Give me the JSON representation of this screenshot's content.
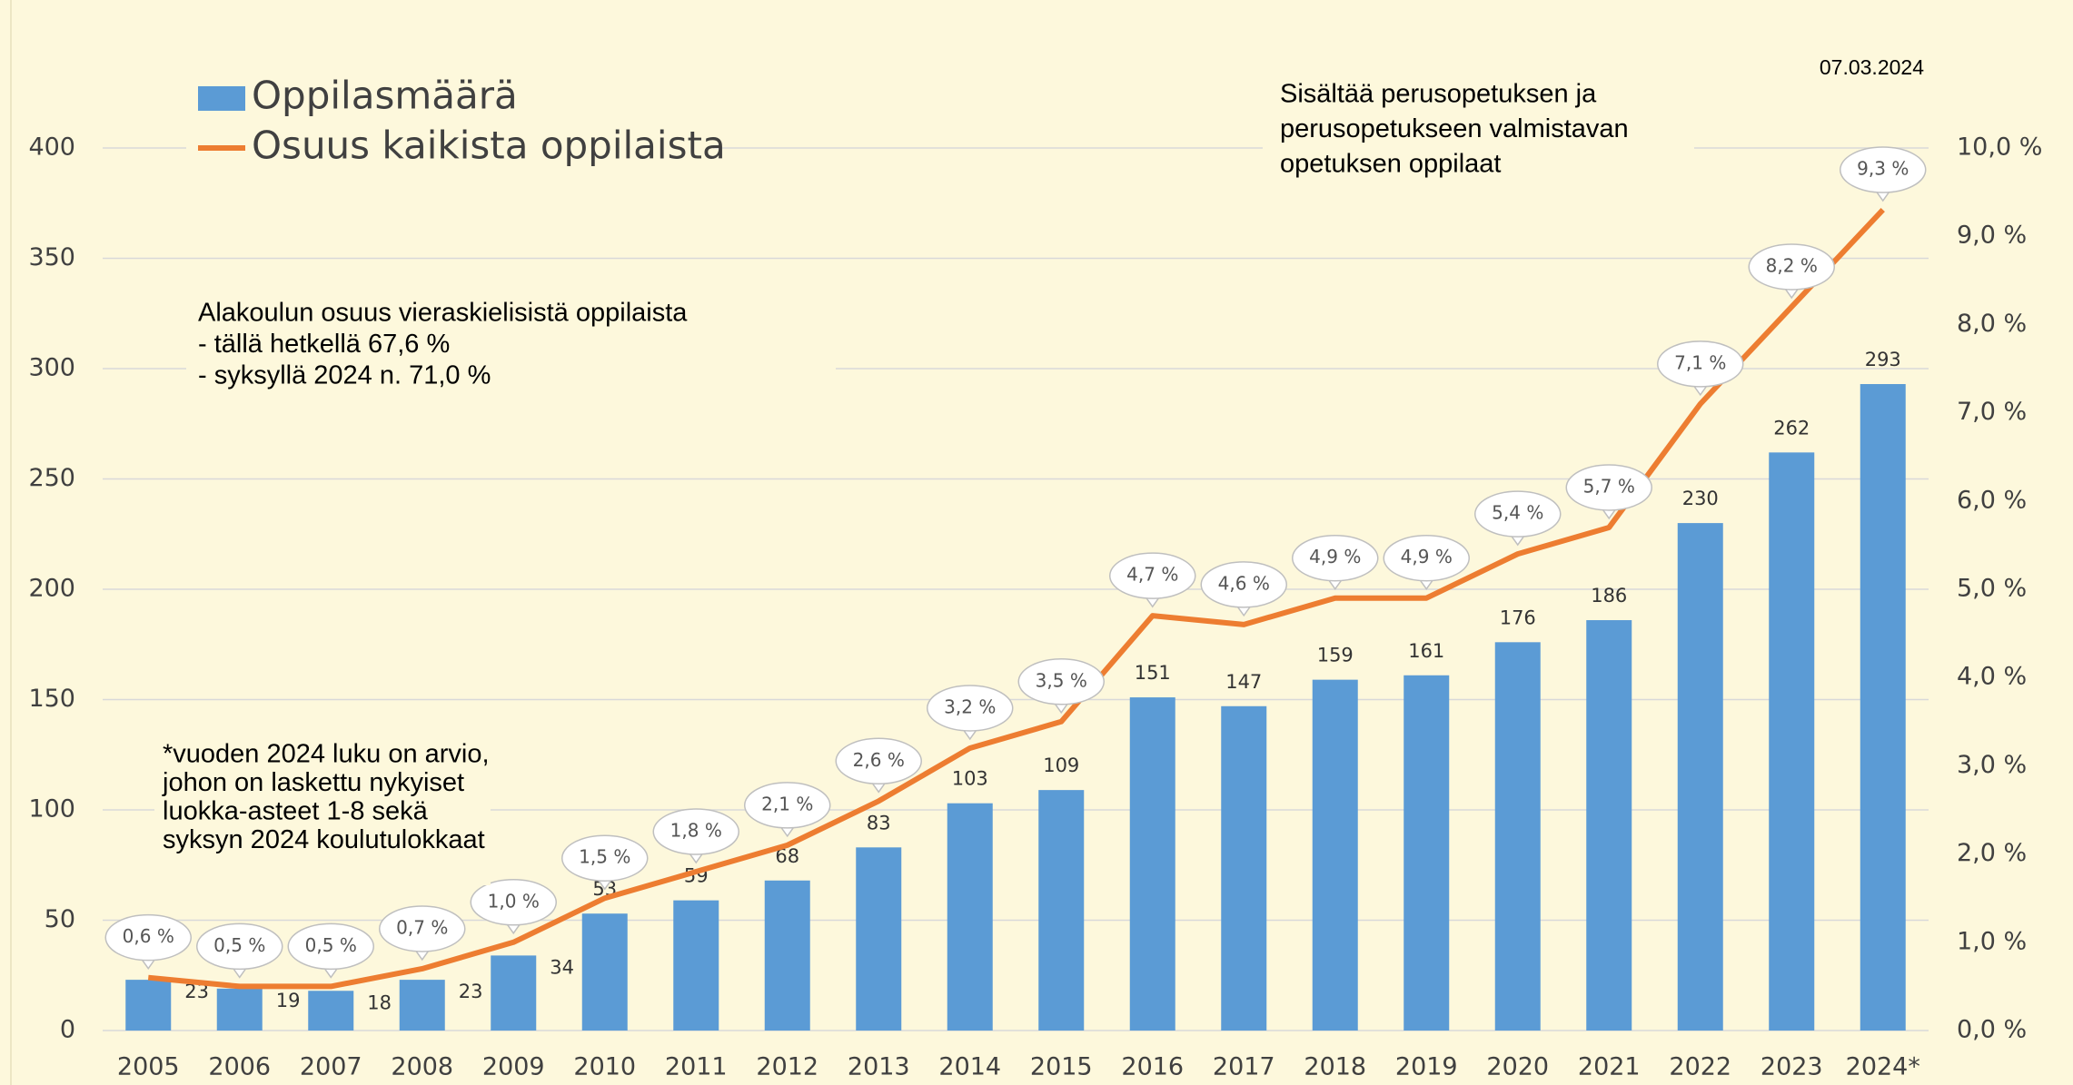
{
  "chart_data": {
    "type": "bar_line",
    "date": "07.03.2024",
    "annotations": [
      "Sisältää perusopetuksen ja",
      "perusopetukseen valmistavan",
      "opetuksen oppilaat"
    ],
    "note_share": [
      "Alakoulun osuus vieraskielisistä oppilaista",
      "-  tällä hetkellä 67,6 %",
      "-  syksyllä 2024 n. 71,0 %"
    ],
    "note_estimate": [
      "*vuoden 2024 luku on arvio,",
      "johon on laskettu nykyiset",
      "luokka-asteet 1-8 sekä",
      "syksyn 2024 koulutulokkaat"
    ],
    "categories": [
      "2005",
      "2006",
      "2007",
      "2008",
      "2009",
      "2010",
      "2011",
      "2012",
      "2013",
      "2014",
      "2015",
      "2016",
      "2017",
      "2018",
      "2019",
      "2020",
      "2021",
      "2022",
      "2023",
      "2024*"
    ],
    "series": [
      {
        "name": "Oppilasmäärä",
        "color": "#5b9bd5",
        "type": "bar",
        "values": [
          23,
          19,
          18,
          23,
          34,
          53,
          59,
          68,
          83,
          103,
          109,
          151,
          147,
          159,
          161,
          176,
          186,
          230,
          262,
          293
        ]
      },
      {
        "name": "Osuus kaikista oppilaista",
        "color": "#ed7d31",
        "type": "line",
        "axis": "y2",
        "values": [
          0.6,
          0.5,
          0.5,
          0.7,
          1.0,
          1.5,
          1.8,
          2.1,
          2.6,
          3.2,
          3.5,
          4.7,
          4.6,
          4.9,
          4.9,
          5.4,
          5.7,
          7.1,
          8.2,
          9.3
        ],
        "value_labels": [
          "0,6 %",
          "0,5 %",
          "0,5 %",
          "0,7 %",
          "1,0 %",
          "1,5 %",
          "1,8 %",
          "2,1 %",
          "2,6 %",
          "3,2 %",
          "3,5 %",
          "4,7 %",
          "4,6 %",
          "4,9 %",
          "4,9 %",
          "5,4 %",
          "5,7 %",
          "7,1 %",
          "8,2 %",
          "9,3 %"
        ]
      }
    ],
    "ylim": [
      0,
      400
    ],
    "yticks": [
      0,
      50,
      100,
      150,
      200,
      250,
      300,
      350,
      400
    ],
    "y2lim": [
      0,
      10
    ],
    "y2ticks": [
      {
        "value": 0,
        "label": "0,0 %"
      },
      {
        "value": 1,
        "label": "1,0 %"
      },
      {
        "value": 2,
        "label": "2,0 %"
      },
      {
        "value": 3,
        "label": "3,0 %"
      },
      {
        "value": 4,
        "label": "4,0 %"
      },
      {
        "value": 5,
        "label": "5,0 %"
      },
      {
        "value": 6,
        "label": "6,0 %"
      },
      {
        "value": 7,
        "label": "7,0 %"
      },
      {
        "value": 8,
        "label": "8,0 %"
      },
      {
        "value": 9,
        "label": "9,0 %"
      },
      {
        "value": 10,
        "label": "10,0 %"
      }
    ],
    "grid": true
  }
}
